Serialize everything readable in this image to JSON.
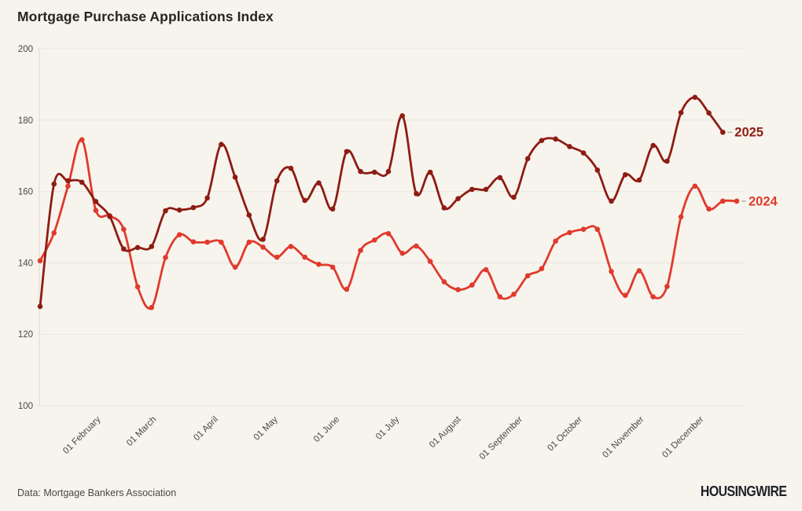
{
  "page": {
    "title": "Mortgage Purchase Applications Index",
    "source_note": "Data: Mortgage Bankers Association",
    "brand": "HOUSINGWIRE"
  },
  "colors": {
    "background": "#f7f4ee",
    "grid_line": "#e9e5de",
    "axis_line": "#dcd8d0",
    "title_text": "#26251f",
    "tick_text": "#4a4842",
    "legend_dash": "#b5b1aa",
    "series_2025": "#8e1c13",
    "series_2024": "#e03a2c"
  },
  "chart_data": {
    "type": "line",
    "title": "Mortgage Purchase Applications Index",
    "xlabel": "",
    "ylabel": "",
    "ylim": [
      100,
      200
    ],
    "y_ticks": [
      200,
      180,
      160,
      140,
      120,
      100
    ],
    "x_tick_labels": [
      "01 February",
      "01 March",
      "01 April",
      "01 May",
      "01 June",
      "01 July",
      "01 August",
      "01 September",
      "01 October",
      "01 November",
      "01 December"
    ],
    "x_cadence": "weekly-from-early-january",
    "grid": true,
    "legend_position": "line-end-right",
    "series": [
      {
        "name": "2025",
        "color": "#8e1c13",
        "values": [
          127.8,
          162.1,
          163.0,
          162.6,
          157.2,
          153.0,
          143.9,
          144.3,
          144.6,
          154.6,
          154.8,
          155.5,
          158.2,
          173.2,
          164.0,
          153.4,
          146.6,
          163.0,
          166.5,
          157.5,
          162.4,
          155.1,
          171.2,
          165.6,
          165.4,
          165.6,
          181.2,
          159.4,
          165.4,
          155.4,
          158.0,
          160.6,
          160.6,
          163.9,
          158.4,
          169.2,
          174.3,
          174.7,
          172.6,
          170.8,
          166.0,
          157.3,
          164.7,
          163.2,
          172.9,
          168.5,
          182.1,
          186.4,
          182.0,
          176.6
        ]
      },
      {
        "name": "2024",
        "color": "#e03a2c",
        "values": [
          140.6,
          148.4,
          161.5,
          174.5,
          154.7,
          153.2,
          149.4,
          133.3,
          127.5,
          141.5,
          147.9,
          145.9,
          145.8,
          145.8,
          138.8,
          145.8,
          144.4,
          141.6,
          144.6,
          141.6,
          139.6,
          138.8,
          132.6,
          143.5,
          146.4,
          148.2,
          142.7,
          144.7,
          140.4,
          134.7,
          132.5,
          133.8,
          138.1,
          130.5,
          131.2,
          136.4,
          138.4,
          146.1,
          148.5,
          149.4,
          149.4,
          137.6,
          130.9,
          137.8,
          130.5,
          133.4,
          152.9,
          161.5,
          155.1,
          157.3,
          157.3
        ]
      }
    ]
  }
}
